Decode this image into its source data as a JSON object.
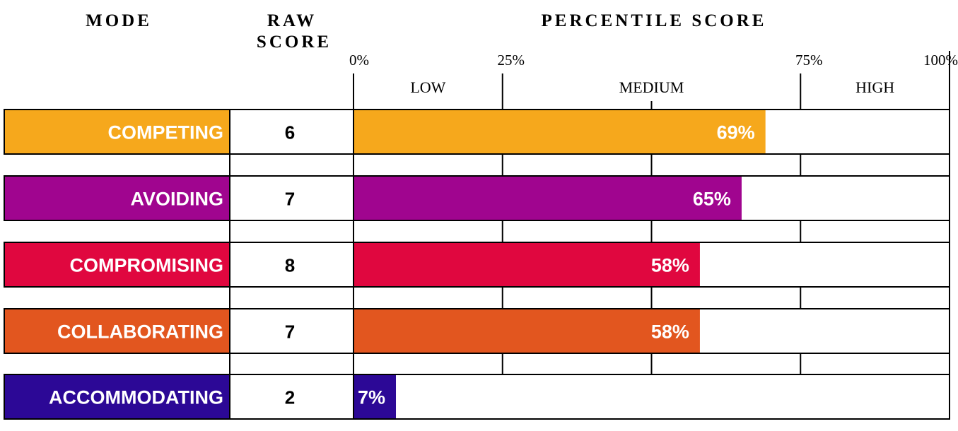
{
  "headers": {
    "mode": "MODE",
    "raw_line1": "RAW",
    "raw_line2": "SCORE",
    "percentile": "PERCENTILE SCORE"
  },
  "chart_data": {
    "type": "bar",
    "orientation": "horizontal",
    "xlim": [
      0,
      100
    ],
    "ticks": [
      "0%",
      "25%",
      "75%",
      "100%"
    ],
    "tick_values": [
      0,
      25,
      75,
      100
    ],
    "bands": [
      {
        "label": "LOW",
        "from": 0,
        "to": 25
      },
      {
        "label": "MEDIUM",
        "from": 25,
        "to": 75
      },
      {
        "label": "HIGH",
        "from": 75,
        "to": 100
      }
    ],
    "rows": [
      {
        "mode": "COMPETING",
        "raw": "6",
        "value": 69,
        "label": "69%",
        "color": "#f6a81c"
      },
      {
        "mode": "AVOIDING",
        "raw": "7",
        "value": 65,
        "label": "65%",
        "color": "#a0058f"
      },
      {
        "mode": "COMPROMISING",
        "raw": "8",
        "value": 58,
        "label": "58%",
        "color": "#e0073f"
      },
      {
        "mode": "COLLABORATING",
        "raw": "7",
        "value": 58,
        "label": "58%",
        "color": "#e2561f"
      },
      {
        "mode": "ACCOMMODATING",
        "raw": "2",
        "value": 7,
        "label": "7%",
        "color": "#2c0896"
      }
    ]
  }
}
